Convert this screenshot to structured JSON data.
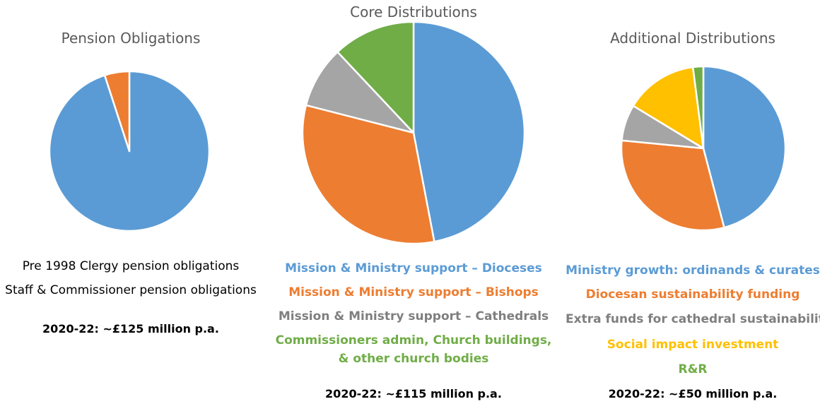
{
  "chart_data": [
    {
      "type": "pie",
      "title": "Pension Obligations",
      "series": [
        {
          "name": "Pre 1998 Clergy pension obligations",
          "value": 95,
          "color": "#5B9BD5"
        },
        {
          "name": "Staff & Commissioner pension obligations",
          "value": 5,
          "color": "#ED7D31"
        }
      ],
      "total_label": "2020-22: ~£125 million p.a.",
      "legend_style": "plain"
    },
    {
      "type": "pie",
      "title": "Core Distributions",
      "series": [
        {
          "name": "Mission & Ministry support – Dioceses",
          "value": 47,
          "color": "#5B9BD5"
        },
        {
          "name": "Mission & Ministry support – Bishops",
          "value": 32,
          "color": "#ED7D31"
        },
        {
          "name": "Mission & Ministry support – Cathedrals",
          "value": 9,
          "color": "#A5A5A5"
        },
        {
          "name": "Commissioners admin, Church buildings, & other church bodies",
          "value": 12,
          "color": "#70AD47"
        }
      ],
      "legend_lines": [
        {
          "text": "Mission & Ministry support – Dioceses",
          "color": "#5B9BD5"
        },
        {
          "text": "Mission & Ministry support – Bishops",
          "color": "#ED7D31"
        },
        {
          "text": "Mission & Ministry support – Cathedrals",
          "color": "#7F7F7F"
        },
        {
          "text": "Commissioners admin, Church buildings,",
          "color": "#70AD47"
        },
        {
          "text": "& other church bodies",
          "color": "#70AD47"
        }
      ],
      "total_label": "2020-22: ~£115 million p.a."
    },
    {
      "type": "pie",
      "title": "Additional Distributions",
      "series": [
        {
          "name": "Ministry growth: ordinands & curates",
          "value": 45,
          "color": "#5B9BD5"
        },
        {
          "name": "Diocesan sustainability funding",
          "value": 30,
          "color": "#ED7D31"
        },
        {
          "name": "Extra funds for cathedral sustainability",
          "value": 7,
          "color": "#A5A5A5"
        },
        {
          "name": "Social impact investment",
          "value": 14,
          "color": "#FFC000"
        },
        {
          "name": "R&R",
          "value": 2,
          "color": "#70AD47"
        }
      ],
      "legend_lines": [
        {
          "text": "Ministry growth: ordinands & curates",
          "color": "#5B9BD5"
        },
        {
          "text": "Diocesan sustainability funding",
          "color": "#ED7D31"
        },
        {
          "text": "Extra funds for cathedral sustainability",
          "color": "#7F7F7F"
        },
        {
          "text": "Social impact investment",
          "color": "#FFC000"
        },
        {
          "text": "R&R",
          "color": "#70AD47"
        }
      ],
      "total_label": "2020-22: ~£50 million p.a."
    }
  ]
}
